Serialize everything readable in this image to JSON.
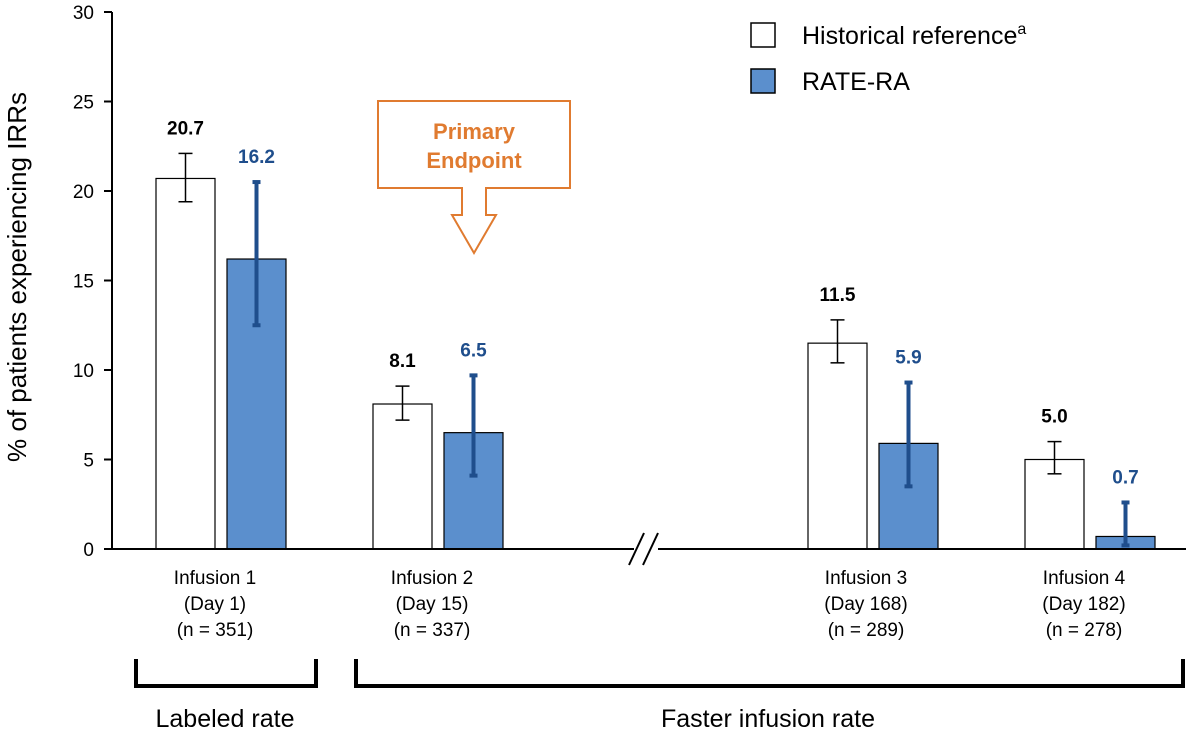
{
  "chart_data": {
    "type": "bar",
    "ylabel": "% of patients experiencing IRRs",
    "ylim": [
      0,
      30
    ],
    "yticks": [
      0,
      5,
      10,
      15,
      20,
      25,
      30
    ],
    "categories": [
      {
        "lines": [
          "Infusion 1",
          "(Day 1)",
          "(n = 351)"
        ]
      },
      {
        "lines": [
          "Infusion 2",
          "(Day 15)",
          "(n = 337)"
        ]
      },
      {
        "lines": [
          "Infusion 3",
          "(Day 168)",
          "(n = 289)"
        ]
      },
      {
        "lines": [
          "Infusion 4",
          "(Day 182)",
          "(n = 278)"
        ]
      }
    ],
    "series": [
      {
        "name": "Historical reference",
        "name_superscript": "a",
        "fill": "#ffffff",
        "stroke": "#000000",
        "label_color": "#000000",
        "errorbar_color": "#000000",
        "values": [
          20.7,
          8.1,
          11.5,
          5.0
        ],
        "labels": [
          "20.7",
          "8.1",
          "11.5",
          "5.0"
        ],
        "err_low": [
          19.4,
          7.2,
          10.4,
          4.2
        ],
        "err_high": [
          22.1,
          9.1,
          12.8,
          6.0
        ]
      },
      {
        "name": "RATE-RA",
        "fill": "#5b8fcd",
        "stroke": "#000000",
        "label_color": "#1f4e8c",
        "errorbar_color": "#1f4e8c",
        "values": [
          16.2,
          6.5,
          5.9,
          0.7
        ],
        "labels": [
          "16.2",
          "6.5",
          "5.9",
          "0.7"
        ],
        "err_low": [
          12.5,
          4.1,
          3.5,
          0.2
        ],
        "err_high": [
          20.5,
          9.7,
          9.3,
          2.6
        ]
      }
    ],
    "annotation": {
      "lines": [
        "Primary",
        "Endpoint"
      ],
      "color": "#e07b30",
      "target": "Infusion 2"
    },
    "groups": [
      {
        "label": "Labeled rate",
        "covers": [
          "Infusion 1"
        ]
      },
      {
        "label": "Faster infusion rate",
        "covers": [
          "Infusion 2",
          "Infusion 3",
          "Infusion 4"
        ]
      }
    ],
    "axis_break": true,
    "legend_position": "top-right"
  }
}
